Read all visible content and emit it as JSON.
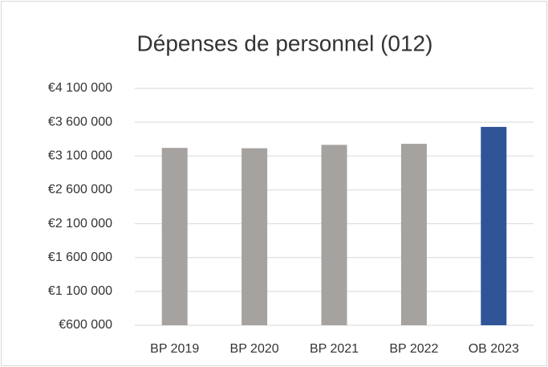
{
  "chart_data": {
    "type": "bar",
    "title": "Dépenses de personnel (012)",
    "categories": [
      "BP 2019",
      "BP 2020",
      "BP 2021",
      "BP 2022",
      "OB 2023"
    ],
    "values": [
      3220000,
      3215000,
      3265000,
      3280000,
      3530000
    ],
    "colors": [
      "#a5a2a0",
      "#a5a2a0",
      "#a5a2a0",
      "#a5a2a0",
      "#2f5597"
    ],
    "ylim": [
      600000,
      4100000
    ],
    "yticks": [
      {
        "value": 600000,
        "label": "€600 000"
      },
      {
        "value": 1100000,
        "label": "€1 100 000"
      },
      {
        "value": 1600000,
        "label": "€1 600 000"
      },
      {
        "value": 2100000,
        "label": "€2 100 000"
      },
      {
        "value": 2600000,
        "label": "€2 600 000"
      },
      {
        "value": 3100000,
        "label": "€3 100 000"
      },
      {
        "value": 3600000,
        "label": "€3 600 000"
      },
      {
        "value": 4100000,
        "label": "€4 100 000"
      }
    ],
    "grid": true
  }
}
